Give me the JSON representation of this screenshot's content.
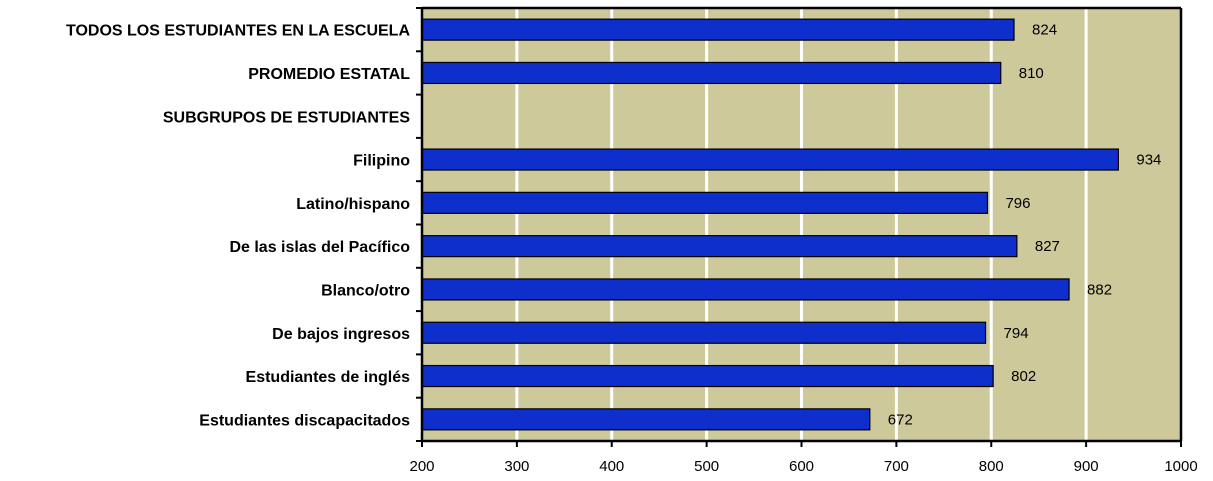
{
  "chart_data": {
    "type": "bar",
    "orientation": "horizontal",
    "categories": [
      "TODOS LOS ESTUDIANTES EN LA ESCUELA",
      "PROMEDIO ESTATAL",
      "SUBGRUPOS DE ESTUDIANTES",
      "Filipino",
      "Latino/hispano",
      "De las islas del Pacífico",
      "Blanco/otro",
      "De bajos ingresos",
      "Estudiantes de inglés",
      "Estudiantes discapacitados"
    ],
    "values": [
      824,
      810,
      null,
      934,
      796,
      827,
      882,
      794,
      802,
      672
    ],
    "value_labels": [
      "824",
      "810",
      "",
      "934",
      "796",
      "827",
      "882",
      "794",
      "802",
      "672"
    ],
    "xlim": [
      200,
      1000
    ],
    "xticks": [
      200,
      300,
      400,
      500,
      600,
      700,
      800,
      900,
      1000
    ],
    "xtick_labels": [
      "200",
      "300",
      "400",
      "500",
      "600",
      "700",
      "800",
      "900",
      "1000"
    ],
    "grid": true,
    "colors": {
      "bar_fill": "#0f2fcc",
      "bar_stroke": "#000000",
      "plot_background": "#cdc99a",
      "gridline": "#ffffff",
      "axis": "#000000"
    }
  }
}
